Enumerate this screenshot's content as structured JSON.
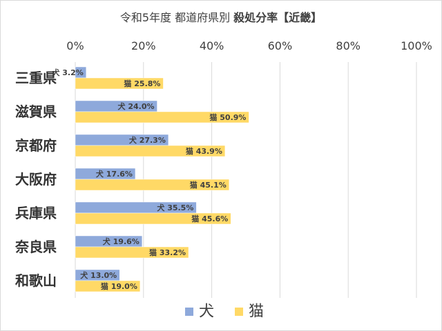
{
  "chart_data": {
    "type": "bar",
    "orientation": "horizontal",
    "title": {
      "prefix": "令和5年度 都道府県別 ",
      "emphasis": "殺処分率【近畿】"
    },
    "categories": [
      "三重県",
      "滋賀県",
      "京都府",
      "大阪府",
      "兵庫県",
      "奈良県",
      "和歌山"
    ],
    "series": [
      {
        "name": "犬",
        "color": "#8ea9db",
        "values": [
          3.2,
          24.0,
          27.3,
          17.6,
          35.5,
          19.6,
          13.0
        ]
      },
      {
        "name": "猫",
        "color": "#ffd966",
        "values": [
          25.8,
          50.9,
          43.9,
          45.1,
          45.6,
          33.2,
          19.0
        ]
      }
    ],
    "value_labels": [
      [
        "3.2%",
        "24.0%",
        "27.3%",
        "17.6%",
        "35.5%",
        "19.6%",
        "13.0%"
      ],
      [
        "25.8%",
        "50.9%",
        "43.9%",
        "45.1%",
        "45.6%",
        "33.2%",
        "19.0%"
      ]
    ],
    "x_ticks": [
      "0%",
      "20%",
      "40%",
      "60%",
      "80%",
      "100%"
    ],
    "xlim": [
      0,
      100
    ],
    "grid": true,
    "gridline_color": "#d9d9d9",
    "xaxis_position": "top",
    "legend_position": "bottom"
  }
}
